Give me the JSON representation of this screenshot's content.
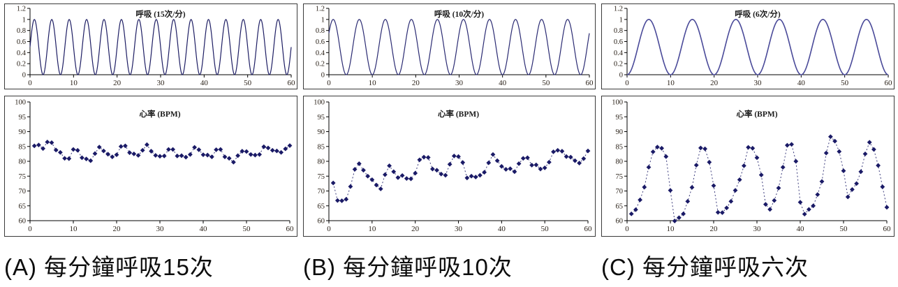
{
  "page": {
    "background": "#ffffff"
  },
  "colors": {
    "axis": "#000000",
    "tick_text": "#2a2118",
    "title_text": "#1a1a1a",
    "panel_border": "#3a3a3a",
    "caption_text": "#0d0d0d"
  },
  "captions": [
    {
      "text": "(A) 每分鐘呼吸15次"
    },
    {
      "text": "(B) 每分鐘呼吸10次"
    },
    {
      "text": "(C) 每分鐘呼吸六次"
    }
  ],
  "chart_data": [
    {
      "id": "breathing-15",
      "type": "line",
      "title": "呼吸 (15次/分)",
      "breaths_per_min": 15,
      "wave": {
        "shape": "raised-cosine",
        "amplitude": 1,
        "period_s": 4,
        "first_peak_s": 1
      },
      "x": {
        "min": 0,
        "max": 60,
        "ticks": [
          0,
          10,
          20,
          30,
          40,
          50,
          60
        ]
      },
      "y": {
        "min": 0,
        "max": 1.2,
        "ticks": [
          0,
          0.2,
          0.4,
          0.6,
          0.8,
          1,
          1.2
        ],
        "tick_labels": [
          "0",
          "0.2",
          "0.4",
          "0.6",
          "0.8",
          "1",
          "1.2"
        ]
      },
      "line_color": "#1d1d63",
      "line_width": 1.2,
      "grid": false,
      "legend": false
    },
    {
      "id": "breathing-10",
      "type": "line",
      "title": "呼吸 (10次/分)",
      "breaths_per_min": 10,
      "wave": {
        "shape": "raised-cosine",
        "amplitude": 1,
        "period_s": 6,
        "first_peak_s": 1
      },
      "x": {
        "min": 0,
        "max": 60,
        "ticks": [
          0,
          10,
          20,
          30,
          40,
          50,
          60
        ]
      },
      "y": {
        "min": 0,
        "max": 1.2,
        "ticks": [
          0,
          0.2,
          0.4,
          0.6,
          0.8,
          1,
          1.2
        ],
        "tick_labels": [
          "0",
          "0.2",
          "0.4",
          "0.6",
          "0.8",
          "1",
          "1.2"
        ]
      },
      "line_color": "#2a2a72",
      "line_width": 1.2,
      "grid": false,
      "legend": false
    },
    {
      "id": "breathing-6",
      "type": "line",
      "title": "呼吸 (6次/分)",
      "breaths_per_min": 6,
      "wave": {
        "shape": "raised-cosine",
        "amplitude": 1,
        "period_s": 10,
        "first_peak_s": 5
      },
      "x": {
        "min": 0,
        "max": 60,
        "ticks": [
          0,
          10,
          20,
          30,
          40,
          50,
          60
        ]
      },
      "y": {
        "min": 0,
        "max": 1.2,
        "ticks": [
          0,
          0.2,
          0.4,
          0.6,
          0.8,
          1,
          1.2
        ],
        "tick_labels": [
          "0",
          "0.2",
          "0.4",
          "0.6",
          "0.8",
          "1",
          "1.2"
        ]
      },
      "line_color": "#4a4a99",
      "line_width": 1.6,
      "grid": false,
      "legend": false
    },
    {
      "id": "heart-rate-a",
      "type": "scatter",
      "title": "心率 (BPM)",
      "x": {
        "min": 0,
        "max": 60,
        "ticks": [
          0,
          10,
          20,
          30,
          40,
          50,
          60
        ]
      },
      "y": {
        "min": 60,
        "max": 100,
        "ticks": [
          60,
          65,
          70,
          75,
          80,
          85,
          90,
          95,
          100
        ],
        "tick_labels": [
          "60",
          "65",
          "70",
          "75",
          "80",
          "85",
          "90",
          "95",
          "100"
        ]
      },
      "x_start": 1,
      "x_step": 1,
      "values": [
        85.2,
        85.5,
        84.3,
        86.5,
        86.3,
        83.8,
        83.0,
        81.0,
        80.9,
        84.0,
        83.7,
        81.2,
        80.8,
        80.2,
        82.6,
        84.8,
        83.5,
        82.4,
        81.5,
        82.2,
        85.0,
        85.2,
        82.9,
        82.5,
        82.0,
        83.7,
        85.6,
        83.4,
        82.0,
        81.7,
        81.8,
        84.0,
        84.0,
        81.8,
        81.9,
        81.4,
        82.3,
        84.7,
        83.9,
        82.2,
        82.1,
        81.5,
        83.9,
        84.0,
        81.5,
        81.0,
        79.7,
        81.9,
        83.4,
        83.3,
        82.3,
        82.1,
        82.3,
        84.9,
        84.5,
        83.7,
        83.5,
        83.0,
        84.2,
        85.3
      ],
      "marker": "diamond",
      "marker_color": "#1a1a66",
      "line_style": "dashed",
      "grid": false,
      "legend": false
    },
    {
      "id": "heart-rate-b",
      "type": "scatter",
      "title": "心率 (BPM)",
      "x": {
        "min": 0,
        "max": 60,
        "ticks": [
          0,
          10,
          20,
          30,
          40,
          50,
          60
        ]
      },
      "y": {
        "min": 60,
        "max": 100,
        "ticks": [
          60,
          65,
          70,
          75,
          80,
          85,
          90,
          95,
          100
        ],
        "tick_labels": [
          "60",
          "65",
          "70",
          "75",
          "80",
          "85",
          "90",
          "95",
          "100"
        ]
      },
      "x_start": 1,
      "x_step": 1,
      "values": [
        72.7,
        66.8,
        66.7,
        67.2,
        71.5,
        77.3,
        79.2,
        77.0,
        75.0,
        73.8,
        72.0,
        70.7,
        75.5,
        78.5,
        76.5,
        74.5,
        75.2,
        74.2,
        74.1,
        76.0,
        80.5,
        81.4,
        81.3,
        77.4,
        77.0,
        75.7,
        75.3,
        79.0,
        81.8,
        81.6,
        79.6,
        74.4,
        75.0,
        74.7,
        75.3,
        76.3,
        79.5,
        82.3,
        80.2,
        78.3,
        77.3,
        77.5,
        76.5,
        79.2,
        81.0,
        81.2,
        78.7,
        78.8,
        77.4,
        77.8,
        79.7,
        83.2,
        83.7,
        83.4,
        81.6,
        81.4,
        80.2,
        79.4,
        80.9,
        83.5
      ],
      "marker": "diamond",
      "marker_color": "#1a1a66",
      "line_style": "dashed",
      "grid": false,
      "legend": false
    },
    {
      "id": "heart-rate-c",
      "type": "scatter",
      "title": "心率 (BPM)",
      "x": {
        "min": 0,
        "max": 60,
        "ticks": [
          0,
          10,
          20,
          30,
          40,
          50,
          60
        ]
      },
      "y": {
        "min": 60,
        "max": 100,
        "ticks": [
          60,
          65,
          70,
          75,
          80,
          85,
          90,
          95,
          100
        ],
        "tick_labels": [
          "60",
          "65",
          "70",
          "75",
          "80",
          "85",
          "90",
          "95",
          "100"
        ]
      },
      "x_start": 1,
      "x_step": 1,
      "values": [
        62.3,
        63.7,
        67.0,
        71.3,
        78.0,
        83.2,
        84.8,
        84.4,
        81.6,
        70.2,
        59.9,
        61.0,
        62.3,
        66.5,
        71.2,
        78.7,
        84.5,
        84.2,
        79.7,
        71.8,
        62.8,
        62.7,
        64.3,
        66.5,
        70.2,
        73.8,
        78.5,
        84.7,
        84.4,
        81.2,
        75.4,
        65.5,
        63.8,
        66.8,
        71.0,
        78.0,
        85.4,
        85.7,
        80.0,
        66.2,
        62.2,
        63.8,
        65.0,
        68.8,
        73.2,
        82.8,
        88.3,
        86.8,
        83.3,
        76.8,
        68.0,
        70.5,
        72.5,
        76.5,
        82.5,
        86.4,
        84.0,
        78.6,
        71.4,
        64.5
      ],
      "marker": "diamond",
      "marker_color": "#1a1a66",
      "line_style": "dashed",
      "grid": false,
      "legend": false
    }
  ]
}
